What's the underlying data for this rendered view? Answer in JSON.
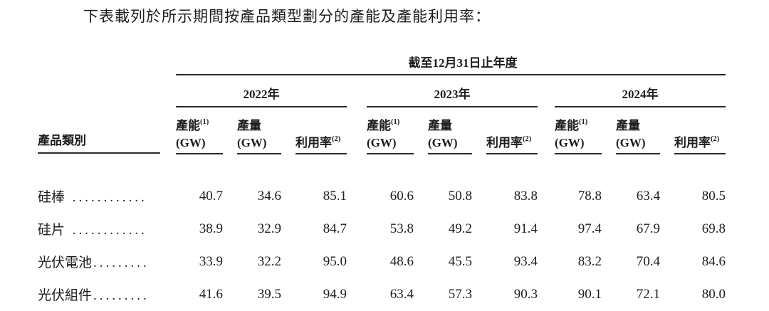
{
  "page": {
    "intro_text": "下表載列於所示期間按產品類型劃分的產能及產能利用率："
  },
  "table": {
    "period_header": "截至12月31日止年度",
    "row_header": "產品類別",
    "years": [
      "2022年",
      "2023年",
      "2024年"
    ],
    "col_headers": {
      "capacity": "產能",
      "capacity_note": "(1)",
      "capacity_unit": "(GW)",
      "output": "產量",
      "output_unit": "(GW)",
      "utilization": "利用率",
      "utilization_note": "(2)"
    },
    "rows": [
      {
        "label": "硅棒",
        "leader": " ............",
        "values": [
          "40.7",
          "34.6",
          "85.1",
          "60.6",
          "50.8",
          "83.8",
          "78.8",
          "63.4",
          "80.5"
        ]
      },
      {
        "label": "硅片",
        "leader": " ............",
        "values": [
          "38.9",
          "32.9",
          "84.7",
          "53.8",
          "49.2",
          "91.4",
          "97.4",
          "67.9",
          "69.8"
        ]
      },
      {
        "label": "光伏電池",
        "leader": ".........",
        "values": [
          "33.9",
          "32.2",
          "95.0",
          "48.6",
          "45.5",
          "93.4",
          "83.2",
          "70.4",
          "84.6"
        ]
      },
      {
        "label": "光伏組件",
        "leader": ".........",
        "values": [
          "41.6",
          "39.5",
          "94.9",
          "63.4",
          "57.3",
          "90.3",
          "90.1",
          "72.1",
          "80.0"
        ]
      }
    ]
  },
  "colors": {
    "text": "#1d1d1d",
    "rule": "#2a2a2a",
    "background": "#ffffff"
  }
}
